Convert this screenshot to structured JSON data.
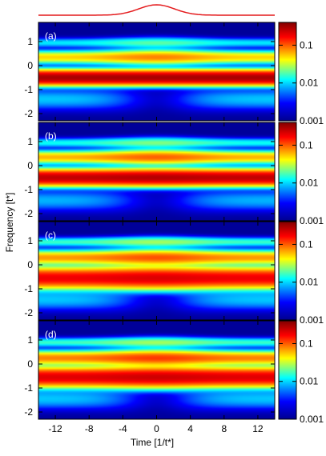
{
  "chart_data": {
    "type": "heatmap",
    "xlabel": "Time [1/t*]",
    "ylabel": "Frequency [t*]",
    "xlim": [
      -14,
      14
    ],
    "ylim": [
      -2.3,
      1.8
    ],
    "x_ticks": [
      -12,
      -8,
      -4,
      0,
      4,
      8,
      12
    ],
    "x_tick_labels": [
      "-12",
      "-8",
      "-4",
      "0",
      "4",
      "8",
      "12"
    ],
    "y_ticks": [
      1,
      0,
      -1,
      -2
    ],
    "y_tick_labels": [
      "1",
      "0",
      "-1",
      "-2"
    ],
    "color_scale": "log",
    "colorbar_range": [
      0.001,
      0.4
    ],
    "colorbar_ticks": [
      0.1,
      0.01,
      0.001
    ],
    "colorbar_tick_labels": [
      "0.1",
      "0.01",
      "0.001"
    ],
    "colormap": [
      "#00008f",
      "#0000ff",
      "#00ffff",
      "#ffff00",
      "#ff0000",
      "#800000"
    ],
    "pulse_color": "#e41a1c",
    "pulse_center": 0,
    "pulse_width": 3,
    "panels": [
      {
        "label": "(a)",
        "bands": [
          {
            "freq": -0.5,
            "width": 0.23,
            "amp": 0.3,
            "mod": 0.0
          },
          {
            "freq": 0.35,
            "width": 0.2,
            "amp": 0.05,
            "mod": 0.6
          },
          {
            "freq": 0.95,
            "width": 0.15,
            "amp": 0.01,
            "mod": 0.8
          },
          {
            "freq": -1.4,
            "width": 0.35,
            "amp": 0.008,
            "mod": -0.9
          }
        ]
      },
      {
        "label": "(b)",
        "bands": [
          {
            "freq": -0.5,
            "width": 0.25,
            "amp": 0.25,
            "mod": 0.1
          },
          {
            "freq": 0.35,
            "width": 0.2,
            "amp": 0.06,
            "mod": 0.6
          },
          {
            "freq": 0.95,
            "width": 0.15,
            "amp": 0.012,
            "mod": 0.8
          },
          {
            "freq": -1.45,
            "width": 0.35,
            "amp": 0.007,
            "mod": -0.9
          }
        ]
      },
      {
        "label": "(c)",
        "bands": [
          {
            "freq": -0.55,
            "width": 0.32,
            "amp": 0.18,
            "mod": 0.15
          },
          {
            "freq": 0.3,
            "width": 0.22,
            "amp": 0.07,
            "mod": 0.5
          },
          {
            "freq": 0.95,
            "width": 0.15,
            "amp": 0.015,
            "mod": 0.7
          },
          {
            "freq": -1.45,
            "width": 0.35,
            "amp": 0.008,
            "mod": -0.9
          }
        ]
      },
      {
        "label": "(d)",
        "bands": [
          {
            "freq": -0.55,
            "width": 0.3,
            "amp": 0.2,
            "mod": 0.15
          },
          {
            "freq": 0.25,
            "width": 0.22,
            "amp": 0.08,
            "mod": 0.5
          },
          {
            "freq": 0.9,
            "width": 0.15,
            "amp": 0.015,
            "mod": 0.7
          },
          {
            "freq": -1.45,
            "width": 0.35,
            "amp": 0.008,
            "mod": -0.9
          }
        ]
      }
    ]
  }
}
